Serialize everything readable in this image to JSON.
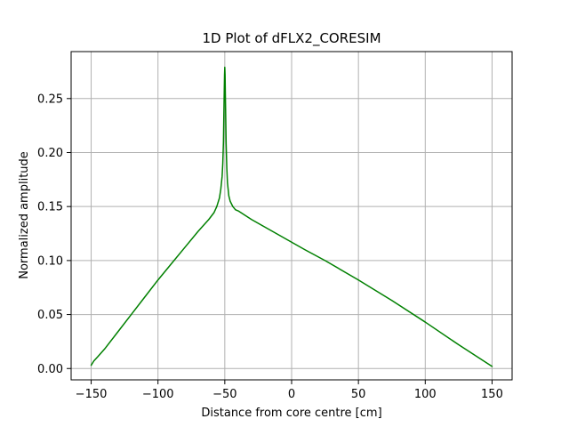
{
  "chart_data": {
    "type": "line",
    "title": "1D Plot of dFLX2_CORESIM",
    "xlabel": "Distance from core centre [cm]",
    "ylabel": "Normalized amplitude",
    "xlim": [
      -165,
      165
    ],
    "ylim": [
      -0.0105,
      0.2935
    ],
    "xticks": [
      -150,
      -100,
      -50,
      0,
      50,
      100,
      150
    ],
    "xtick_labels": [
      "−150",
      "−100",
      "−50",
      "0",
      "50",
      "100",
      "150"
    ],
    "yticks": [
      0.0,
      0.05,
      0.1,
      0.15,
      0.2,
      0.25
    ],
    "ytick_labels": [
      "0.00",
      "0.05",
      "0.10",
      "0.15",
      "0.20",
      "0.25"
    ],
    "grid": true,
    "legend": false,
    "series": [
      {
        "color": "#008000",
        "x": [
          -150,
          -148,
          -145,
          -140,
          -130,
          -120,
          -110,
          -100,
          -90,
          -80,
          -70,
          -62,
          -58,
          -56,
          -54,
          -53,
          -52,
          -51.5,
          -51,
          -50.7,
          -50.4,
          -50.2,
          -50,
          -49.8,
          -49.6,
          -49.3,
          -49,
          -48.5,
          -48,
          -47,
          -46,
          -44,
          -42,
          -40,
          -35,
          -30,
          -20,
          -10,
          0,
          10,
          25,
          50,
          75,
          100,
          125,
          150
        ],
        "y": [
          0.003,
          0.007,
          0.011,
          0.018,
          0.034,
          0.05,
          0.066,
          0.082,
          0.097,
          0.112,
          0.127,
          0.138,
          0.1445,
          0.15,
          0.158,
          0.166,
          0.178,
          0.19,
          0.21,
          0.235,
          0.258,
          0.272,
          0.279,
          0.272,
          0.255,
          0.232,
          0.208,
          0.186,
          0.172,
          0.16,
          0.155,
          0.15,
          0.147,
          0.146,
          0.142,
          0.138,
          0.131,
          0.124,
          0.117,
          0.11,
          0.1,
          0.082,
          0.063,
          0.043,
          0.022,
          0.002
        ]
      }
    ]
  }
}
